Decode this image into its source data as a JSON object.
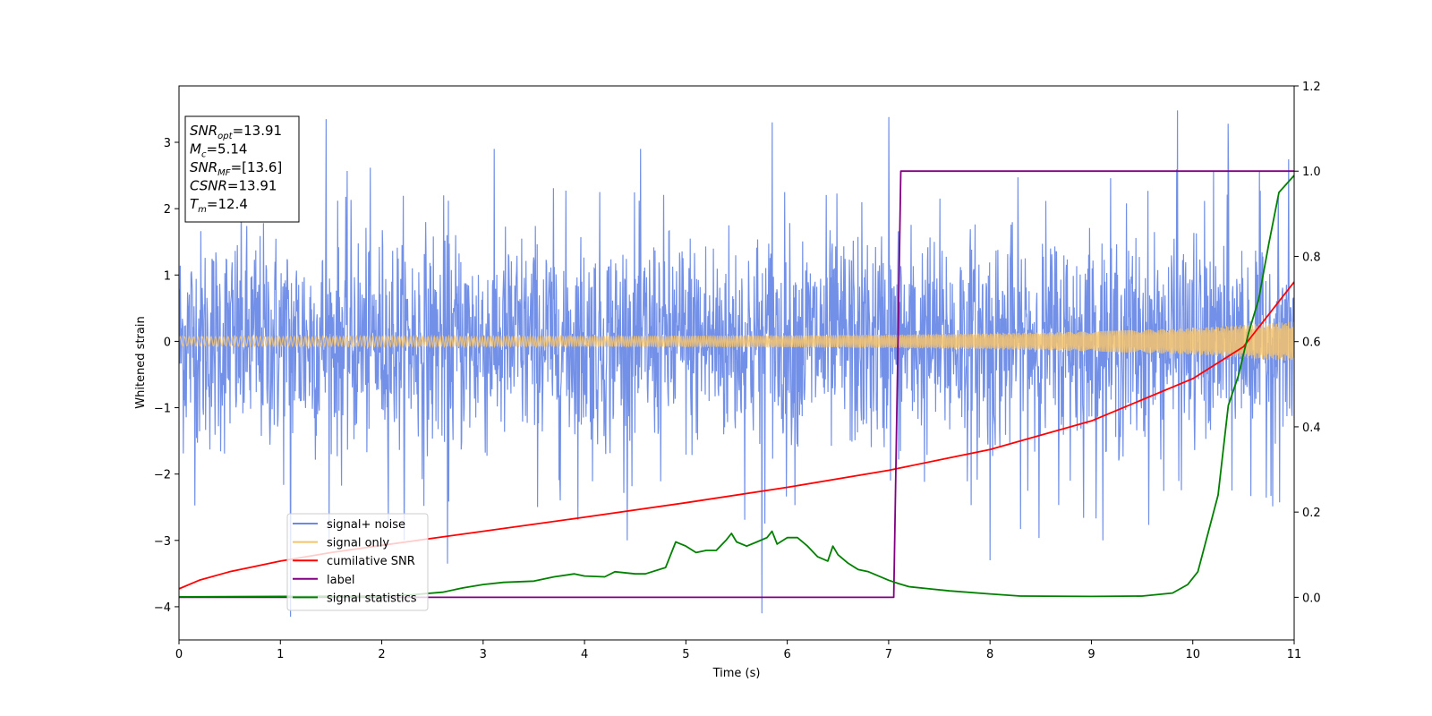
{
  "chart_data": {
    "type": "line",
    "title": "",
    "xlabel": "Time (s)",
    "ylabel": "Whitened strain",
    "xlim": [
      0,
      11
    ],
    "ylim": [
      -4.5,
      3.85
    ],
    "y2lim": [
      -0.1,
      1.2
    ],
    "xticks": [
      "0",
      "1",
      "2",
      "3",
      "4",
      "5",
      "6",
      "7",
      "8",
      "9",
      "10",
      "11"
    ],
    "yticks": [
      "−4",
      "−3",
      "−2",
      "−1",
      "0",
      "1",
      "2",
      "3"
    ],
    "y2ticks": [
      "0.0",
      "0.2",
      "0.4",
      "0.6",
      "0.8",
      "1.0",
      "1.2"
    ],
    "grid": false,
    "legend_position": "lower-left",
    "legend": [
      "signal+ noise",
      "signal only",
      "cumilative SNR",
      "label",
      "signal statistics"
    ],
    "info_box": [
      {
        "main": "SNR",
        "sub": "opt",
        "value": "=13.91"
      },
      {
        "main": "M",
        "sub": "c",
        "value": "=5.14"
      },
      {
        "main": "SNR",
        "sub": "MF",
        "value": "=[13.6]"
      },
      {
        "main": "CSNR",
        "sub": "",
        "value": "=13.91"
      },
      {
        "main": "T",
        "sub": "m",
        "value": "=12.4"
      }
    ],
    "series": [
      {
        "name": "signal+ noise",
        "color": "#6a8ae6",
        "axis": "left",
        "description_values": "noise band roughly within ±1.8 with spikes to ±3.4",
        "peaks": [
          [
            1.45,
            3.35
          ],
          [
            5.85,
            3.3
          ],
          [
            7.0,
            3.38
          ],
          [
            9.85,
            3.48
          ],
          [
            10.35,
            3.28
          ],
          [
            1.1,
            -4.15
          ],
          [
            5.75,
            -4.1
          ],
          [
            2.65,
            -3.35
          ],
          [
            8.0,
            -3.3
          ]
        ]
      },
      {
        "name": "signal only",
        "color": "#f5c36c",
        "axis": "left",
        "amplitude_t": [
          0,
          2,
          4,
          6,
          7,
          8,
          9,
          10,
          11
        ],
        "amplitude": [
          0.07,
          0.075,
          0.08,
          0.09,
          0.1,
          0.12,
          0.15,
          0.2,
          0.3
        ]
      },
      {
        "name": "cumilative SNR",
        "color": "#ff0000",
        "axis": "right",
        "x": [
          0,
          0.2,
          0.5,
          1,
          1.5,
          2,
          3,
          4,
          5,
          6,
          7,
          8,
          9,
          10,
          10.5,
          11
        ],
        "y": [
          0.02,
          0.04,
          0.06,
          0.085,
          0.105,
          0.122,
          0.155,
          0.188,
          0.222,
          0.258,
          0.298,
          0.347,
          0.414,
          0.513,
          0.588,
          0.74
        ]
      },
      {
        "name": "label",
        "color": "#800080",
        "axis": "right",
        "x": [
          0,
          7.05,
          7.12,
          11
        ],
        "y": [
          0,
          0,
          1,
          1
        ]
      },
      {
        "name": "signal statistics",
        "color": "#008000",
        "axis": "right",
        "x": [
          0,
          1,
          2,
          2.3,
          2.6,
          2.8,
          3.0,
          3.2,
          3.5,
          3.7,
          3.9,
          4.0,
          4.2,
          4.3,
          4.5,
          4.6,
          4.8,
          4.9,
          5.0,
          5.1,
          5.2,
          5.3,
          5.4,
          5.45,
          5.5,
          5.6,
          5.7,
          5.8,
          5.85,
          5.9,
          6.0,
          6.1,
          6.2,
          6.3,
          6.4,
          6.45,
          6.5,
          6.6,
          6.7,
          6.8,
          7.0,
          7.1,
          7.2,
          7.4,
          7.6,
          8.0,
          8.3,
          9.0,
          9.5,
          9.8,
          9.95,
          10.05,
          10.15,
          10.25,
          10.35,
          10.45,
          10.55,
          10.65,
          10.75,
          10.85,
          11
        ],
        "y": [
          0.001,
          0.002,
          0.003,
          0.006,
          0.012,
          0.022,
          0.03,
          0.035,
          0.038,
          0.048,
          0.055,
          0.05,
          0.048,
          0.06,
          0.055,
          0.055,
          0.07,
          0.13,
          0.12,
          0.105,
          0.11,
          0.11,
          0.135,
          0.15,
          0.13,
          0.12,
          0.13,
          0.14,
          0.155,
          0.125,
          0.14,
          0.14,
          0.12,
          0.095,
          0.085,
          0.12,
          0.1,
          0.08,
          0.065,
          0.06,
          0.04,
          0.032,
          0.025,
          0.02,
          0.015,
          0.008,
          0.003,
          0.002,
          0.003,
          0.01,
          0.03,
          0.06,
          0.15,
          0.24,
          0.45,
          0.52,
          0.62,
          0.7,
          0.83,
          0.95,
          0.99
        ]
      }
    ]
  }
}
